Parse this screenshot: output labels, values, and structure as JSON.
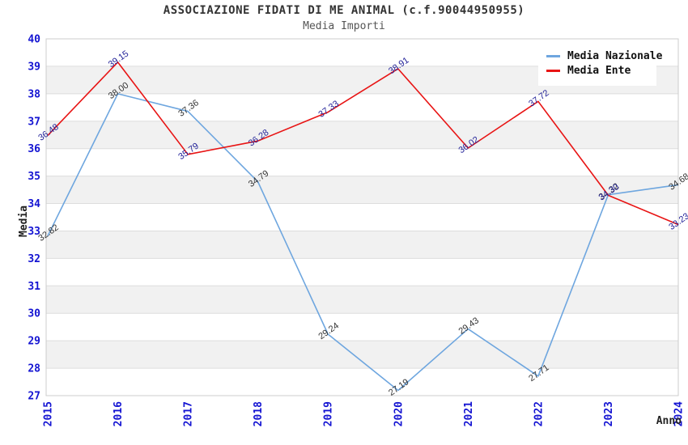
{
  "chart_data": {
    "type": "line",
    "title": "ASSOCIAZIONE FIDATI DI ME ANIMAL (c.f.90044950955)",
    "subtitle": "Media Importi",
    "xlabel": "Anno",
    "ylabel": "Media",
    "x": [
      "2015",
      "2016",
      "2017",
      "2018",
      "2019",
      "2020",
      "2021",
      "2022",
      "2023",
      "2024"
    ],
    "ylim": [
      27,
      40
    ],
    "ytick_step": 1,
    "grid": true,
    "alternating_bands": true,
    "legend_position": "top-right",
    "colors": {
      "tick_labels": "#1414d2",
      "band": "#f1f1f1",
      "gridline": "#dddddd",
      "plot_border": "#cccccc"
    },
    "series": [
      {
        "name": "Media Nazionale",
        "color": "#6ea6df",
        "label_color": "#333333",
        "values": [
          32.82,
          38.0,
          37.36,
          34.79,
          29.24,
          27.19,
          29.43,
          27.71,
          34.32,
          34.68
        ]
      },
      {
        "name": "Media Ente",
        "color": "#e81414",
        "label_color": "#232399",
        "values": [
          36.48,
          39.15,
          35.79,
          36.28,
          37.33,
          38.91,
          36.02,
          37.72,
          34.3,
          33.23
        ]
      }
    ]
  }
}
